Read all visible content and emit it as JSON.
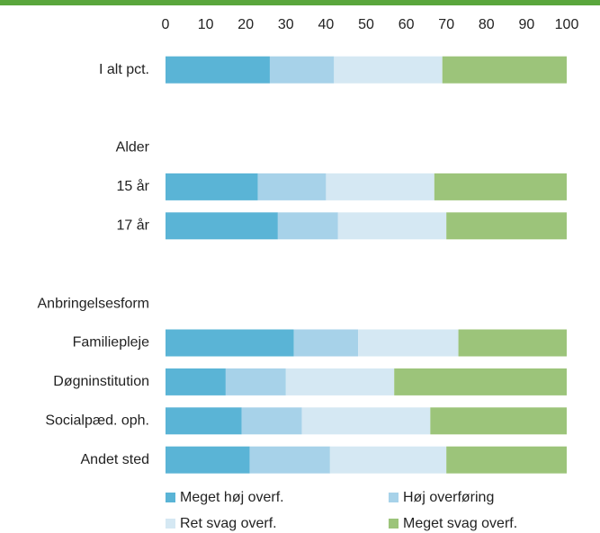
{
  "chart_data": {
    "type": "stacked-horizontal-bar",
    "categories": [
      "I alt pct.",
      null,
      "Alder",
      "15 år",
      "17 år",
      null,
      "Anbringelsesform",
      "Familiepleje",
      "Døgninstitution",
      "Socialpæd. oph.",
      "Andet sted"
    ],
    "series": [
      {
        "name": "Meget høj overf.",
        "color": "#5ab4d6",
        "values": [
          26,
          null,
          null,
          23,
          28,
          null,
          null,
          32,
          15,
          19,
          21
        ]
      },
      {
        "name": "Høj overføring",
        "color": "#a7d2e9",
        "values": [
          16,
          null,
          null,
          17,
          15,
          null,
          null,
          16,
          15,
          15,
          20
        ]
      },
      {
        "name": "Ret svag overf.",
        "color": "#d5e8f3",
        "values": [
          27,
          null,
          null,
          27,
          27,
          null,
          null,
          25,
          27,
          32,
          29
        ]
      },
      {
        "name": "Meget svag overf.",
        "color": "#9cc47a",
        "values": [
          31,
          null,
          null,
          33,
          30,
          null,
          null,
          27,
          43,
          34,
          30
        ]
      }
    ],
    "xlim": [
      0,
      100
    ],
    "xticks": [
      0,
      10,
      20,
      30,
      40,
      50,
      60,
      70,
      80,
      90,
      100
    ],
    "grid": false
  }
}
